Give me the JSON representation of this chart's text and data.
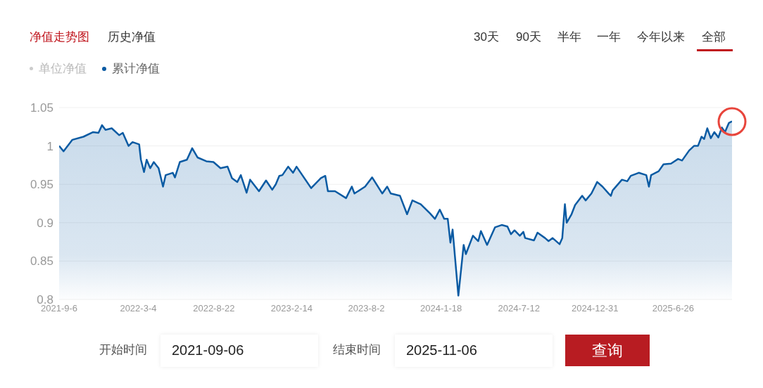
{
  "chart_data": {
    "type": "area",
    "legend": "top left",
    "grid": "y",
    "marker": "none",
    "line_style": "solid",
    "annotations": [
      "净值走势图",
      "历史净值",
      "30天",
      "90天",
      "半年",
      "一年",
      "今年以来",
      "全部",
      "单位净值",
      "开始时间",
      "2021-09-06",
      "结束时间",
      "2025-11-06",
      "查询"
    ],
    "ylim": [
      0.8,
      1.05
    ],
    "yticks": [
      0.8,
      0.85,
      0.9,
      0.95,
      1,
      1.05
    ],
    "xlim": [
      "2021-09-06",
      "2025-11-06"
    ],
    "xticks": [
      {
        "value": "2021-09-06",
        "label": "2021-9-6"
      },
      {
        "value": "2022-03-04",
        "label": "2022-3-4"
      },
      {
        "value": "2022-08-22",
        "label": "2022-8-22"
      },
      {
        "value": "2023-02-14",
        "label": "2023-2-14"
      },
      {
        "value": "2023-08-02",
        "label": "2023-8-2"
      },
      {
        "value": "2024-01-18",
        "label": "2024-1-18"
      },
      {
        "value": "2024-07-12",
        "label": "2024-7-12"
      },
      {
        "value": "2024-12-31",
        "label": "2024-12-31"
      },
      {
        "value": "2025-06-26",
        "label": "2025-6-26"
      }
    ],
    "x": [
      "2021-09-06",
      "2021-09-16",
      "2021-10-06",
      "2021-10-31",
      "2021-11-22",
      "2021-12-04",
      "2021-12-12",
      "2021-12-20",
      "2022-01-03",
      "2022-01-20",
      "2022-01-28",
      "2022-02-10",
      "2022-02-19",
      "2022-03-06",
      "2022-03-10",
      "2022-03-17",
      "2022-03-23",
      "2022-03-31",
      "2022-04-08",
      "2022-04-19",
      "2022-04-29",
      "2022-05-05",
      "2022-05-21",
      "2022-05-26",
      "2022-06-06",
      "2022-06-22",
      "2022-07-04",
      "2022-07-16",
      "2022-08-05",
      "2022-08-21",
      "2022-09-06",
      "2022-09-22",
      "2022-10-02",
      "2022-10-14",
      "2022-10-22",
      "2022-11-04",
      "2022-11-12",
      "2022-12-02",
      "2022-12-18",
      "2023-01-01",
      "2023-01-09",
      "2023-01-17",
      "2023-01-24",
      "2023-02-06",
      "2023-02-17",
      "2023-02-25",
      "2023-03-10",
      "2023-03-30",
      "2023-04-21",
      "2023-05-01",
      "2023-05-07",
      "2023-05-23",
      "2023-06-17",
      "2023-06-30",
      "2023-07-06",
      "2023-07-30",
      "2023-08-15",
      "2023-09-07",
      "2023-09-18",
      "2023-09-26",
      "2023-10-17",
      "2023-11-02",
      "2023-11-14",
      "2023-12-03",
      "2023-12-24",
      "2024-01-04",
      "2024-01-15",
      "2024-01-25",
      "2024-02-02",
      "2024-02-08",
      "2024-02-13",
      "2024-02-26",
      "2024-03-09",
      "2024-03-14",
      "2024-03-30",
      "2024-04-11",
      "2024-04-17",
      "2024-05-01",
      "2024-05-19",
      "2024-06-03",
      "2024-06-16",
      "2024-06-24",
      "2024-07-02",
      "2024-07-14",
      "2024-07-22",
      "2024-07-26",
      "2024-08-15",
      "2024-08-23",
      "2024-09-09",
      "2024-09-17",
      "2024-09-26",
      "2024-10-12",
      "2024-10-18",
      "2024-10-24",
      "2024-10-28",
      "2024-11-08",
      "2024-11-16",
      "2024-12-02",
      "2024-12-10",
      "2024-12-23",
      "2025-01-05",
      "2025-01-17",
      "2025-01-31",
      "2025-02-05",
      "2025-02-09",
      "2025-03-02",
      "2025-03-14",
      "2025-03-22",
      "2025-04-09",
      "2025-04-26",
      "2025-05-02",
      "2025-05-07",
      "2025-05-24",
      "2025-06-04",
      "2025-06-21",
      "2025-07-07",
      "2025-07-16",
      "2025-08-01",
      "2025-08-12",
      "2025-08-21",
      "2025-08-29",
      "2025-09-04",
      "2025-09-11",
      "2025-09-19",
      "2025-09-27",
      "2025-10-06",
      "2025-10-14",
      "2025-10-21",
      "2025-10-30",
      "2025-11-06"
    ],
    "series": [
      {
        "name": "累计净值",
        "color": "#0b5ba3",
        "values": [
          1.0,
          0.993,
          1.008,
          1.012,
          1.018,
          1.017,
          1.027,
          1.021,
          1.023,
          1.014,
          1.017,
          1.0,
          1.005,
          1.002,
          0.982,
          0.966,
          0.982,
          0.971,
          0.979,
          0.971,
          0.947,
          0.962,
          0.965,
          0.959,
          0.979,
          0.982,
          0.997,
          0.985,
          0.98,
          0.979,
          0.971,
          0.973,
          0.958,
          0.953,
          0.962,
          0.939,
          0.956,
          0.941,
          0.955,
          0.943,
          0.95,
          0.961,
          0.962,
          0.973,
          0.965,
          0.973,
          0.962,
          0.945,
          0.958,
          0.961,
          0.941,
          0.941,
          0.932,
          0.947,
          0.938,
          0.947,
          0.959,
          0.938,
          0.947,
          0.938,
          0.935,
          0.911,
          0.929,
          0.924,
          0.912,
          0.905,
          0.917,
          0.905,
          0.905,
          0.874,
          0.891,
          0.805,
          0.871,
          0.859,
          0.883,
          0.876,
          0.889,
          0.871,
          0.894,
          0.897,
          0.895,
          0.885,
          0.89,
          0.883,
          0.888,
          0.88,
          0.877,
          0.887,
          0.88,
          0.876,
          0.88,
          0.872,
          0.88,
          0.924,
          0.9,
          0.911,
          0.923,
          0.935,
          0.929,
          0.938,
          0.953,
          0.947,
          0.938,
          0.935,
          0.942,
          0.956,
          0.954,
          0.961,
          0.965,
          0.962,
          0.947,
          0.962,
          0.967,
          0.976,
          0.977,
          0.983,
          0.981,
          0.994,
          1.0,
          1.0,
          1.012,
          1.009,
          1.023,
          1.01,
          1.018,
          1.011,
          1.024,
          1.018,
          1.03,
          1.032
        ]
      }
    ]
  }
}
